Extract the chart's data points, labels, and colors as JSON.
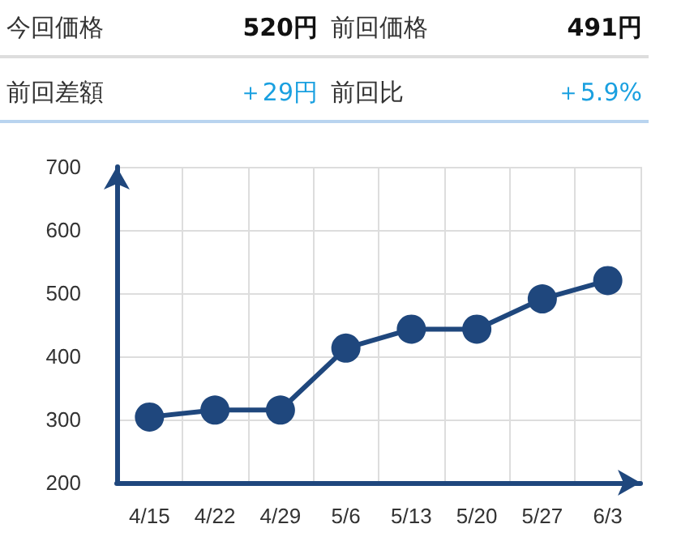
{
  "chart_data": {
    "type": "line",
    "annotations": [
      "今回価格",
      "520円",
      "前回価格",
      "491円",
      "前回差額",
      "＋29円",
      "前回比",
      "＋5.9%"
    ],
    "categories": [
      "4/15",
      "4/22",
      "4/29",
      "5/6",
      "5/13",
      "5/20",
      "5/27",
      "6/3"
    ],
    "series": [
      {
        "color": "#1f477d",
        "values": [
          304,
          315,
          315,
          413,
          443,
          443,
          491,
          520
        ]
      }
    ],
    "ylim": [
      200,
      700
    ],
    "yticks": [
      200,
      300,
      400,
      500,
      600,
      700
    ],
    "grid": true,
    "marker": "circle",
    "line_style": "solid"
  }
}
